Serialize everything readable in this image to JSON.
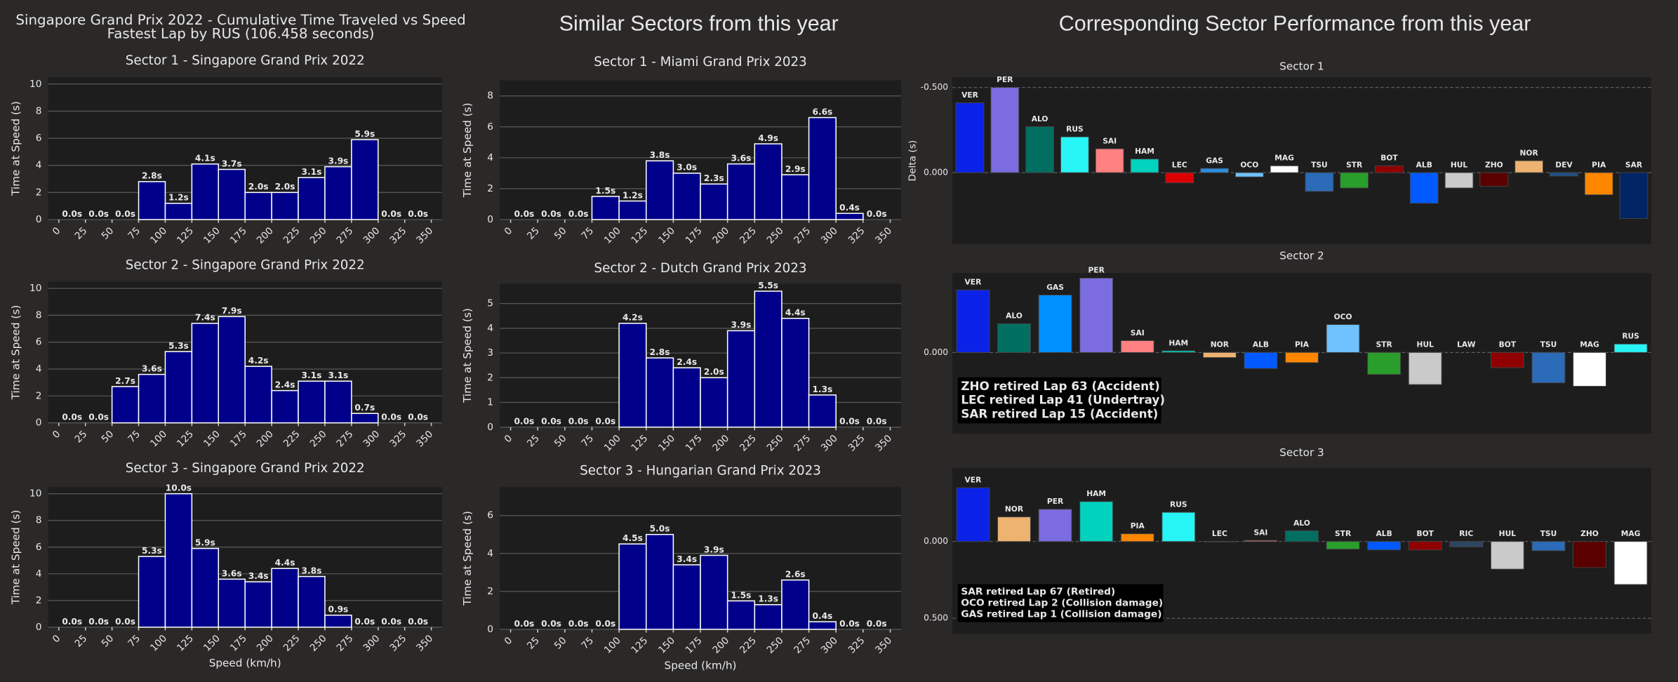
{
  "headings": {
    "left_title": "Singapore Grand Prix 2022 - Cumulative Time Traveled vs Speed",
    "left_subtitle": "Fastest Lap by RUS (106.458 seconds)",
    "middle": "Similar Sectors from this year",
    "right": "Corresponding Sector Performance from this year"
  },
  "chart_data": [
    {
      "type": "histogram",
      "title": "Sector 1 - Singapore Grand Prix 2022",
      "ylabel": "Time at Speed (s)",
      "color": "#00008b",
      "bins": [
        0,
        25,
        50,
        75,
        100,
        125,
        150,
        175,
        200,
        225,
        250,
        275,
        300,
        325,
        350
      ],
      "values": [
        0,
        0,
        0,
        2.8,
        1.2,
        4.1,
        3.7,
        2.0,
        2.0,
        3.1,
        3.9,
        5.9,
        0,
        0
      ],
      "value_labels": [
        "0.0s",
        "0.0s",
        "0.0s",
        "2.8s",
        "1.2s",
        "4.1s",
        "3.7s",
        "2.0s",
        "2.0s",
        "3.1s",
        "3.9s",
        "5.9s",
        "0.0s",
        "0.0s"
      ],
      "xlim": [
        -10,
        360
      ],
      "xticks": [
        0,
        25,
        50,
        75,
        100,
        125,
        150,
        175,
        200,
        225,
        250,
        275,
        300,
        325,
        350
      ],
      "ylim": [
        0,
        10.5
      ],
      "yticks": [
        0,
        2,
        4,
        6,
        8,
        10
      ],
      "grid": true
    },
    {
      "type": "histogram",
      "title": "Sector 2 - Singapore Grand Prix 2022",
      "ylabel": "Time at Speed (s)",
      "color": "#00008b",
      "bins": [
        0,
        25,
        50,
        75,
        100,
        125,
        150,
        175,
        200,
        225,
        250,
        275,
        300,
        325,
        350
      ],
      "values": [
        0,
        0,
        2.7,
        3.6,
        5.3,
        7.4,
        7.9,
        4.2,
        2.4,
        3.1,
        3.1,
        0.7,
        0,
        0
      ],
      "value_labels": [
        "0.0s",
        "0.0s",
        "2.7s",
        "3.6s",
        "5.3s",
        "7.4s",
        "7.9s",
        "4.2s",
        "2.4s",
        "3.1s",
        "3.1s",
        "0.7s",
        "0.0s",
        "0.0s"
      ],
      "xlim": [
        -10,
        360
      ],
      "xticks": [
        0,
        25,
        50,
        75,
        100,
        125,
        150,
        175,
        200,
        225,
        250,
        275,
        300,
        325,
        350
      ],
      "ylim": [
        0,
        10.5
      ],
      "yticks": [
        0,
        2,
        4,
        6,
        8,
        10
      ],
      "grid": true
    },
    {
      "type": "histogram",
      "title": "Sector 3 - Singapore Grand Prix 2022",
      "ylabel": "Time at Speed (s)",
      "xlabel": "Speed (km/h)",
      "color": "#00008b",
      "bins": [
        0,
        25,
        50,
        75,
        100,
        125,
        150,
        175,
        200,
        225,
        250,
        275,
        300,
        325,
        350
      ],
      "values": [
        0,
        0,
        0,
        5.3,
        10.0,
        5.9,
        3.6,
        3.4,
        4.4,
        3.8,
        0.9,
        0,
        0,
        0
      ],
      "value_labels": [
        "0.0s",
        "0.0s",
        "0.0s",
        "5.3s",
        "10.0s",
        "5.9s",
        "3.6s",
        "3.4s",
        "4.4s",
        "3.8s",
        "0.9s",
        "0.0s",
        "0.0s",
        "0.0s"
      ],
      "xlim": [
        -10,
        360
      ],
      "xticks": [
        0,
        25,
        50,
        75,
        100,
        125,
        150,
        175,
        200,
        225,
        250,
        275,
        300,
        325,
        350
      ],
      "ylim": [
        0,
        10.5
      ],
      "yticks": [
        0,
        2,
        4,
        6,
        8,
        10
      ],
      "grid": true
    },
    {
      "type": "histogram",
      "title": "Sector 1 - Miami Grand Prix 2023",
      "ylabel": "Time at Speed (s)",
      "color": "#00008b",
      "bins": [
        0,
        25,
        50,
        75,
        100,
        125,
        150,
        175,
        200,
        225,
        250,
        275,
        300,
        325,
        350
      ],
      "values": [
        0,
        0,
        0,
        1.5,
        1.2,
        3.8,
        3.0,
        2.3,
        3.6,
        4.9,
        2.9,
        6.6,
        0.4,
        0
      ],
      "value_labels": [
        "0.0s",
        "0.0s",
        "0.0s",
        "1.5s",
        "1.2s",
        "3.8s",
        "3.0s",
        "2.3s",
        "3.6s",
        "4.9s",
        "2.9s",
        "6.6s",
        "0.4s",
        "0.0s"
      ],
      "xlim": [
        -10,
        360
      ],
      "xticks": [
        0,
        25,
        50,
        75,
        100,
        125,
        150,
        175,
        200,
        225,
        250,
        275,
        300,
        325,
        350
      ],
      "ylim": [
        0,
        9
      ],
      "yticks": [
        0,
        2,
        4,
        6,
        8
      ],
      "grid": true
    },
    {
      "type": "histogram",
      "title": "Sector 2 - Dutch Grand Prix 2023",
      "ylabel": "Time at Speed (s)",
      "color": "#00008b",
      "bins": [
        0,
        25,
        50,
        75,
        100,
        125,
        150,
        175,
        200,
        225,
        250,
        275,
        300,
        325,
        350
      ],
      "values": [
        0,
        0,
        0,
        0,
        4.2,
        2.8,
        2.4,
        2.0,
        3.9,
        5.5,
        4.4,
        1.3,
        0,
        0
      ],
      "value_labels": [
        "0.0s",
        "0.0s",
        "0.0s",
        "0.0s",
        "4.2s",
        "2.8s",
        "2.4s",
        "2.0s",
        "3.9s",
        "5.5s",
        "4.4s",
        "1.3s",
        "0.0s",
        "0.0s"
      ],
      "xlim": [
        -10,
        360
      ],
      "xticks": [
        0,
        25,
        50,
        75,
        100,
        125,
        150,
        175,
        200,
        225,
        250,
        275,
        300,
        325,
        350
      ],
      "ylim": [
        0,
        5.8
      ],
      "yticks": [
        0,
        1,
        2,
        3,
        4,
        5
      ],
      "grid": true
    },
    {
      "type": "histogram",
      "title": "Sector 3 - Hungarian Grand Prix 2023",
      "ylabel": "Time at Speed (s)",
      "xlabel": "Speed (km/h)",
      "color": "#00008b",
      "bins": [
        0,
        25,
        50,
        75,
        100,
        125,
        150,
        175,
        200,
        225,
        250,
        275,
        300,
        325,
        350
      ],
      "values": [
        0,
        0,
        0,
        0,
        4.5,
        5.0,
        3.4,
        3.9,
        1.5,
        1.3,
        2.6,
        0.4,
        0,
        0
      ],
      "value_labels": [
        "0.0s",
        "0.0s",
        "0.0s",
        "0.0s",
        "4.5s",
        "5.0s",
        "3.4s",
        "3.9s",
        "1.5s",
        "1.3s",
        "2.6s",
        "0.4s",
        "0.0s",
        "0.0s"
      ],
      "xlim": [
        -10,
        360
      ],
      "xticks": [
        0,
        25,
        50,
        75,
        100,
        125,
        150,
        175,
        200,
        225,
        250,
        275,
        300,
        325,
        350
      ],
      "ylim": [
        0,
        7.5
      ],
      "yticks": [
        0,
        2,
        4,
        6
      ],
      "grid": true
    },
    {
      "type": "bar",
      "title": "Sector 1",
      "ylabel": "Delta (s)",
      "invert_y": true,
      "categories": [
        "VER",
        "PER",
        "ALO",
        "RUS",
        "SAI",
        "HAM",
        "LEC",
        "GAS",
        "OCO",
        "MAG",
        "TSU",
        "STR",
        "BOT",
        "ALB",
        "HUL",
        "ZHO",
        "NOR",
        "DEV",
        "PIA",
        "SAR"
      ],
      "values": [
        -0.41,
        -0.5,
        -0.27,
        -0.21,
        -0.14,
        -0.08,
        0.06,
        -0.025,
        0.025,
        -0.04,
        0.11,
        0.09,
        -0.04,
        0.18,
        0.09,
        0.08,
        -0.07,
        0.02,
        0.13,
        0.27
      ],
      "colors": [
        "#0a22e8",
        "#7b6de0",
        "#006f62",
        "#27f4f4",
        "#ff8181",
        "#00d2be",
        "#dc0000",
        "#2b8fe0",
        "#70c2ff",
        "#ffffff",
        "#2b6bb8",
        "#2a9e2a",
        "#900000",
        "#005aff",
        "#cacaca",
        "#5a0000",
        "#eeb370",
        "#1e4f8a",
        "#ff8700",
        "#012564"
      ],
      "ylim": [
        -0.56,
        0.42
      ],
      "yticks": [
        {
          "value": -0.5,
          "label": "-0.500"
        },
        {
          "value": 0,
          "label": "0.000"
        }
      ],
      "grid": true
    },
    {
      "type": "bar",
      "title": "Sector 2",
      "invert_y": true,
      "categories": [
        "VER",
        "ALO",
        "GAS",
        "PER",
        "SAI",
        "HAM",
        "NOR",
        "ALB",
        "PIA",
        "OCO",
        "STR",
        "HUL",
        "LAW",
        "BOT",
        "TSU",
        "MAG",
        "RUS"
      ],
      "values": [
        -0.37,
        -0.17,
        -0.34,
        -0.44,
        -0.07,
        -0.01,
        0.03,
        0.095,
        0.06,
        -0.165,
        0.13,
        0.19,
        0,
        0.09,
        0.18,
        0.2,
        -0.05
      ],
      "colors": [
        "#0a22e8",
        "#006f62",
        "#0090ff",
        "#7b6de0",
        "#ff8181",
        "#00d2be",
        "#eeb370",
        "#005aff",
        "#ff8700",
        "#70c2ff",
        "#2a9e2a",
        "#cacaca",
        "#2b4562",
        "#900000",
        "#2b6bb8",
        "#ffffff",
        "#27f4f4"
      ],
      "ylim": [
        -0.47,
        0.48
      ],
      "yticks": [
        {
          "value": 0,
          "label": "0.000"
        }
      ],
      "grid": true,
      "annotations": [
        "ZHO retired Lap 63 (Accident)",
        "LEC retired Lap 41 (Undertray)",
        "SAR retired Lap 15 (Accident)"
      ]
    },
    {
      "type": "bar",
      "title": "Sector 3",
      "invert_y": true,
      "categories": [
        "VER",
        "NOR",
        "PER",
        "HAM",
        "PIA",
        "RUS",
        "LEC",
        "SAI",
        "ALO",
        "STR",
        "ALB",
        "BOT",
        "RIC",
        "HUL",
        "TSU",
        "ZHO",
        "MAG"
      ],
      "values": [
        -0.35,
        -0.16,
        -0.21,
        -0.26,
        -0.05,
        -0.19,
        0.003,
        -0.007,
        -0.07,
        0.05,
        0.055,
        0.055,
        0.035,
        0.18,
        0.06,
        0.17,
        0.28
      ],
      "colors": [
        "#0a22e8",
        "#eeb370",
        "#7b6de0",
        "#00d2be",
        "#ff8700",
        "#27f4f4",
        "#dc0000",
        "#ff8181",
        "#006f62",
        "#2a9e2a",
        "#005aff",
        "#900000",
        "#2b4562",
        "#cacaca",
        "#2b6bb8",
        "#5a0000",
        "#ffffff"
      ],
      "ylim": [
        -0.48,
        0.6
      ],
      "yticks": [
        {
          "value": 0,
          "label": "0.000"
        },
        {
          "value": 0.5,
          "label": "0.500"
        }
      ],
      "grid": true,
      "annotations": [
        "SAR retired Lap 67 (Retired)",
        "OCO retired Lap 2 (Collision damage)",
        "GAS retired Lap 1 (Collision damage)"
      ]
    }
  ]
}
